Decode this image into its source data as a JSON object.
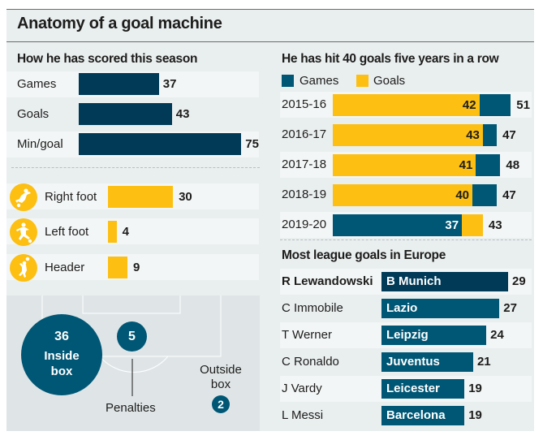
{
  "title": "Anatomy of a goal machine",
  "colors": {
    "navy": "#003a57",
    "teal": "#005775",
    "yellow": "#fcbf12",
    "bg": "#e9eeef",
    "stripe": "#f3f6f7"
  },
  "season": {
    "heading": "How he has scored this season",
    "rows": [
      {
        "label": "Games",
        "value": 37
      },
      {
        "label": "Goals",
        "value": 43
      },
      {
        "label": "Min/goal",
        "value": 75
      }
    ]
  },
  "methods": {
    "rows": [
      {
        "icon": "right-foot-kick-icon",
        "label": "Right foot",
        "value": 30
      },
      {
        "icon": "left-foot-kick-icon",
        "label": "Left foot",
        "value": 4
      },
      {
        "icon": "header-icon",
        "label": "Header",
        "value": 9
      }
    ]
  },
  "locations": {
    "inside": {
      "value": "36",
      "label_line1": "Inside",
      "label_line2": "box"
    },
    "penalties": {
      "value": "5",
      "label": "Penalties"
    },
    "outside": {
      "value": "2",
      "label_line1": "Outside",
      "label_line2": "box"
    }
  },
  "streak": {
    "heading": "He has hit 40 goals five years in a row",
    "legend": [
      {
        "label": "Games",
        "color": "#005775"
      },
      {
        "label": "Goals",
        "color": "#fcbf12"
      }
    ]
  },
  "europe": {
    "heading": "Most league goals in Europe"
  },
  "chart_data": [
    {
      "type": "bar",
      "title": "How he has scored this season",
      "categories": [
        "Games",
        "Goals",
        "Min/goal"
      ],
      "values": [
        37,
        43,
        75
      ],
      "orientation": "horizontal"
    },
    {
      "type": "bar",
      "title": "Goals by method",
      "categories": [
        "Right foot",
        "Left foot",
        "Header"
      ],
      "values": [
        30,
        4,
        9
      ],
      "orientation": "horizontal"
    },
    {
      "type": "bubble",
      "title": "Goal locations",
      "categories": [
        "Inside box",
        "Penalties",
        "Outside box"
      ],
      "values": [
        36,
        5,
        2
      ]
    },
    {
      "type": "bar",
      "title": "He has hit 40 goals five years in a row",
      "orientation": "horizontal",
      "overlapping": true,
      "categories": [
        "2015-16",
        "2016-17",
        "2017-18",
        "2018-19",
        "2019-20"
      ],
      "series": [
        {
          "name": "Games",
          "values": [
            51,
            47,
            48,
            47,
            37
          ]
        },
        {
          "name": "Goals",
          "values": [
            42,
            43,
            41,
            40,
            43
          ]
        }
      ],
      "legend": "top-left"
    },
    {
      "type": "bar",
      "title": "Most league goals in Europe",
      "orientation": "horizontal",
      "categories": [
        "R Lewandowski",
        "C Immobile",
        "T Werner",
        "C Ronaldo",
        "J Vardy",
        "L Messi"
      ],
      "clubs": [
        "B Munich",
        "Lazio",
        "Leipzig",
        "Juventus",
        "Leicester",
        "Barcelona"
      ],
      "values": [
        29,
        27,
        24,
        21,
        19,
        19
      ],
      "highlight": "R Lewandowski"
    }
  ]
}
